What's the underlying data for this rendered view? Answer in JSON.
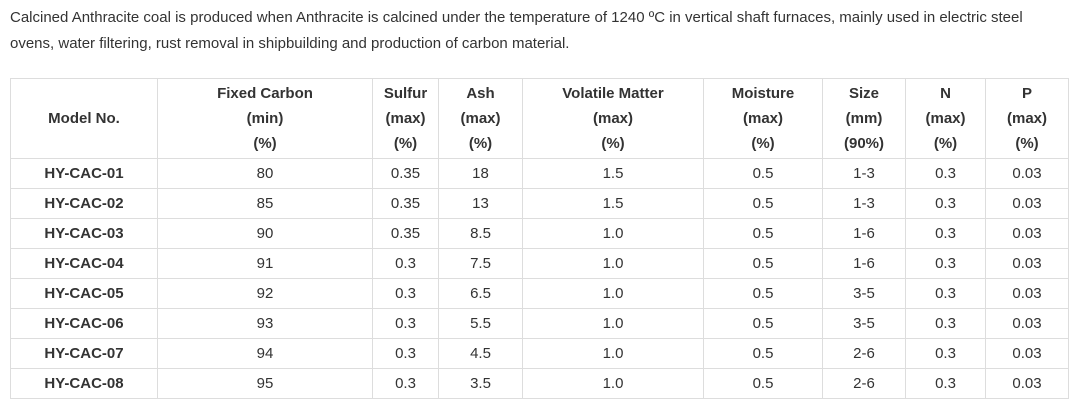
{
  "intro": "Calcined Anthracite coal is produced when Anthracite is calcined under the temperature of 1240 ºC in vertical shaft furnaces, mainly used in electric steel ovens, water filtering, rust removal in shipbuilding and production of carbon material.",
  "table": {
    "header": [
      [
        "Model No."
      ],
      [
        "Fixed Carbon",
        "(min)",
        "(%)"
      ],
      [
        "Sulfur",
        "(max)",
        "(%)"
      ],
      [
        "Ash",
        "(max)",
        "(%)"
      ],
      [
        "Volatile Matter",
        "(max)",
        "(%)"
      ],
      [
        "Moisture",
        "(max)",
        "(%)"
      ],
      [
        "Size",
        "(mm)",
        "(90%)"
      ],
      [
        "N",
        "(max)",
        "(%)"
      ],
      [
        "P",
        "(max)",
        "(%)"
      ]
    ],
    "rows": [
      [
        "HY-CAC-01",
        "80",
        "0.35",
        "18",
        "1.5",
        "0.5",
        "1-3",
        "0.3",
        "0.03"
      ],
      [
        "HY-CAC-02",
        "85",
        "0.35",
        "13",
        "1.5",
        "0.5",
        "1-3",
        "0.3",
        "0.03"
      ],
      [
        "HY-CAC-03",
        "90",
        "0.35",
        "8.5",
        "1.0",
        "0.5",
        "1-6",
        "0.3",
        "0.03"
      ],
      [
        "HY-CAC-04",
        "91",
        "0.3",
        "7.5",
        "1.0",
        "0.5",
        "1-6",
        "0.3",
        "0.03"
      ],
      [
        "HY-CAC-05",
        "92",
        "0.3",
        "6.5",
        "1.0",
        "0.5",
        "3-5",
        "0.3",
        "0.03"
      ],
      [
        "HY-CAC-06",
        "93",
        "0.3",
        "5.5",
        "1.0",
        "0.5",
        "3-5",
        "0.3",
        "0.03"
      ],
      [
        "HY-CAC-07",
        "94",
        "0.3",
        "4.5",
        "1.0",
        "0.5",
        "2-6",
        "0.3",
        "0.03"
      ],
      [
        "HY-CAC-08",
        "95",
        "0.3",
        "3.5",
        "1.0",
        "0.5",
        "2-6",
        "0.3",
        "0.03"
      ]
    ]
  }
}
